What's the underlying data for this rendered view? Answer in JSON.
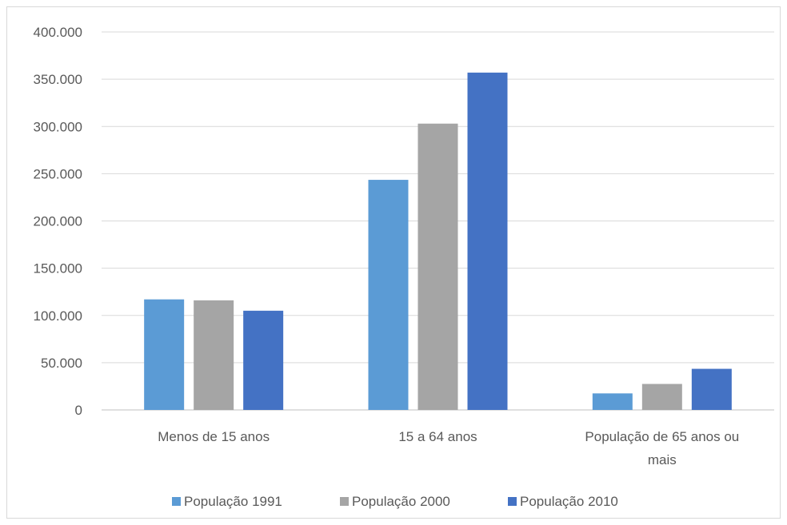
{
  "chart_data": {
    "type": "bar",
    "categories": [
      "Menos de 15 anos",
      "15 a 64 anos",
      "População de 65 anos ou mais"
    ],
    "category_lines": [
      [
        "Menos de 15 anos"
      ],
      [
        "15 a 64 anos"
      ],
      [
        "População de 65 anos ou",
        "mais"
      ]
    ],
    "series": [
      {
        "name": "População 1991",
        "color": "#5b9bd5",
        "values": [
          117000,
          243500,
          17500
        ]
      },
      {
        "name": "População 2000",
        "color": "#a5a5a5",
        "values": [
          116000,
          303000,
          27500
        ]
      },
      {
        "name": "População 2010",
        "color": "#4472c4",
        "values": [
          105000,
          357000,
          43500
        ]
      }
    ],
    "ylim": [
      0,
      400000
    ],
    "yticks": [
      0,
      50000,
      100000,
      150000,
      200000,
      250000,
      300000,
      350000,
      400000
    ],
    "ytick_labels": [
      "0",
      "50.000",
      "100.000",
      "150.000",
      "200.000",
      "250.000",
      "300.000",
      "350.000",
      "400.000"
    ],
    "grid": true,
    "legend": "bottom",
    "title": "",
    "xlabel": "",
    "ylabel": ""
  }
}
